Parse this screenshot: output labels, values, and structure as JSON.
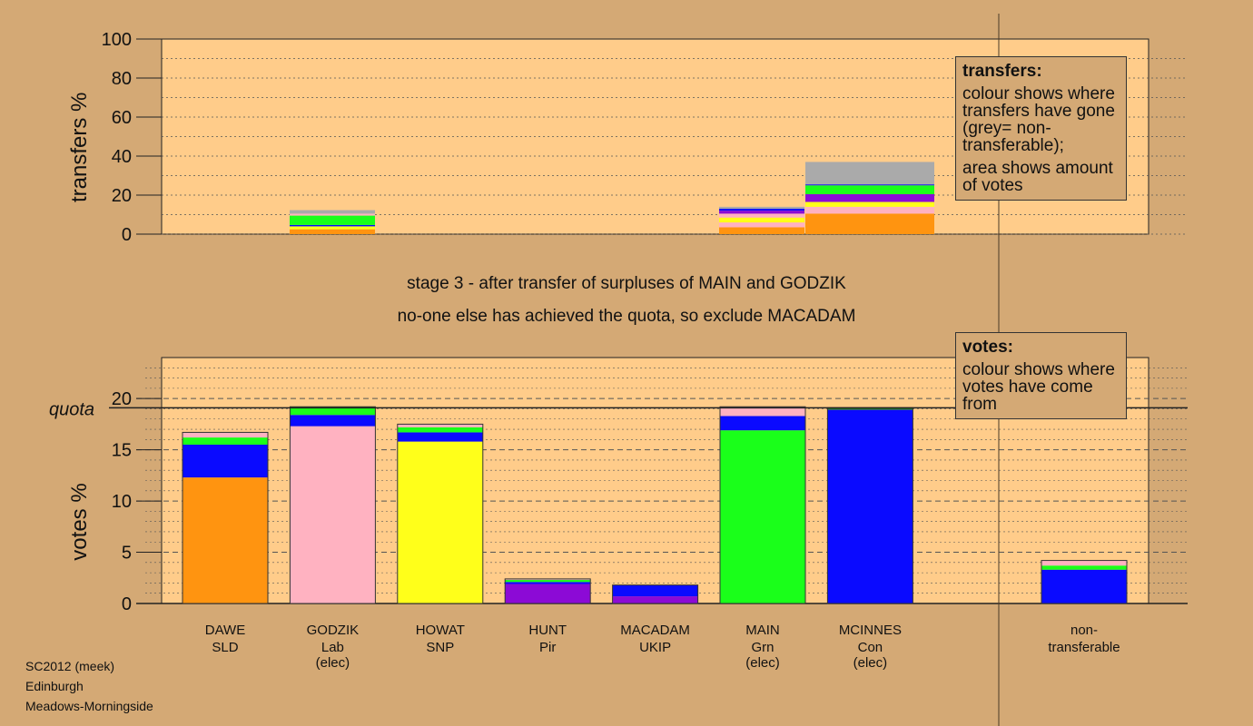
{
  "colors": {
    "background": "#d4a975",
    "plot_bg": "#ffcc8a",
    "SLD": "#ff9410",
    "Lab": "#ffb2c1",
    "SNP": "#ffff1a",
    "Pir": "#8c0ad6",
    "UKIP": "#8c0ad6",
    "Grn": "#1aff1a",
    "Con": "#0a0aff",
    "nontransferable": "#aaaaaa",
    "dark_green": "#2a7a2a"
  },
  "stage": {
    "line1": "stage 3 - after transfer of surpluses of MAIN and GODZIK",
    "line2": "no-one else has achieved the quota, so exclude MACADAM"
  },
  "legend_transfers": {
    "title": "transfers:",
    "p1": "colour shows where transfers have gone (grey= non-transferable);",
    "p2": "area shows amount of votes"
  },
  "legend_votes": {
    "title": "votes:",
    "p1": "colour shows where votes have come from"
  },
  "footer": {
    "line1": "SC2012 (meek)",
    "line2": "Edinburgh",
    "line3": "Meadows-Morningside"
  },
  "chart_data": [
    {
      "type": "bar",
      "stacked": true,
      "ylabel": "transfers %",
      "ylim": [
        0,
        100
      ],
      "yticks": [
        0,
        20,
        40,
        60,
        80,
        100
      ],
      "bars": [
        {
          "candidate": "GODZIK",
          "segments": [
            {
              "color": "SLD",
              "value": 2.5
            },
            {
              "color": "SNP",
              "value": 1.5
            },
            {
              "color": "Con",
              "value": 0.7
            },
            {
              "color": "Grn",
              "value": 4.8
            },
            {
              "color": "Lab",
              "value": 1.0
            },
            {
              "color": "nontransferable",
              "value": 1.8
            }
          ]
        },
        {
          "candidate": "MAIN",
          "segments": [
            {
              "color": "SLD",
              "value": 3.5
            },
            {
              "color": "Lab",
              "value": 2.5
            },
            {
              "color": "SNP",
              "value": 2.5
            },
            {
              "color": "Lab",
              "value": 2.0
            },
            {
              "color": "Pir",
              "value": 1.5
            },
            {
              "color": "Con",
              "value": 1.0
            },
            {
              "color": "nontransferable",
              "value": 1.0
            }
          ]
        },
        {
          "candidate": "MCINNES",
          "segments": [
            {
              "color": "SLD",
              "value": 10.5
            },
            {
              "color": "Lab",
              "value": 3.5
            },
            {
              "color": "SNP",
              "value": 2.5
            },
            {
              "color": "Pir",
              "value": 4.0
            },
            {
              "color": "Grn",
              "value": 4.5
            },
            {
              "color": "Con",
              "value": 0.5
            },
            {
              "color": "nontransferable",
              "value": 11.5
            }
          ]
        }
      ]
    },
    {
      "type": "bar",
      "stacked": true,
      "ylabel": "votes %",
      "ylim": [
        0,
        24
      ],
      "yticks": [
        0,
        5,
        10,
        15,
        20
      ],
      "quota": 19.1,
      "quota_label": "quota",
      "candidates": [
        {
          "name": "DAWE",
          "party": "SLD",
          "note": "",
          "segments": [
            {
              "color": "SLD",
              "value": 12.3
            },
            {
              "color": "Con",
              "value": 3.2
            },
            {
              "color": "Grn",
              "value": 0.7
            },
            {
              "color": "Lab",
              "value": 0.5
            }
          ]
        },
        {
          "name": "GODZIK",
          "party": "Lab",
          "note": "(elec)",
          "segments": [
            {
              "color": "Lab",
              "value": 17.3
            },
            {
              "color": "Con",
              "value": 1.1
            },
            {
              "color": "Grn",
              "value": 0.8
            }
          ]
        },
        {
          "name": "HOWAT",
          "party": "SNP",
          "note": "",
          "segments": [
            {
              "color": "SNP",
              "value": 15.8
            },
            {
              "color": "Con",
              "value": 0.9
            },
            {
              "color": "Grn",
              "value": 0.5
            },
            {
              "color": "Lab",
              "value": 0.3
            }
          ]
        },
        {
          "name": "HUNT",
          "party": "Pir",
          "note": "",
          "segments": [
            {
              "color": "Pir",
              "value": 1.9
            },
            {
              "color": "Con",
              "value": 0.2
            },
            {
              "color": "Grn",
              "value": 0.2
            },
            {
              "color": "Lab",
              "value": 0.1
            }
          ]
        },
        {
          "name": "MACADAM",
          "party": "UKIP",
          "note": "",
          "segments": [
            {
              "color": "UKIP",
              "value": 0.7
            },
            {
              "color": "Con",
              "value": 1.1
            }
          ]
        },
        {
          "name": "MAIN",
          "party": "Grn",
          "note": "(elec)",
          "segments": [
            {
              "color": "Grn",
              "value": 16.9
            },
            {
              "color": "Con",
              "value": 1.4
            },
            {
              "color": "Lab",
              "value": 0.9
            }
          ]
        },
        {
          "name": "MCINNES",
          "party": "Con",
          "note": "(elec)",
          "segments": [
            {
              "color": "Con",
              "value": 18.9
            },
            {
              "color": "dark_green",
              "value": 0.2
            }
          ]
        },
        {
          "name": "non-",
          "party": "transferable",
          "note": "",
          "segments": [
            {
              "color": "Con",
              "value": 3.3
            },
            {
              "color": "Grn",
              "value": 0.4
            },
            {
              "color": "Lab",
              "value": 0.5
            }
          ]
        }
      ]
    }
  ]
}
